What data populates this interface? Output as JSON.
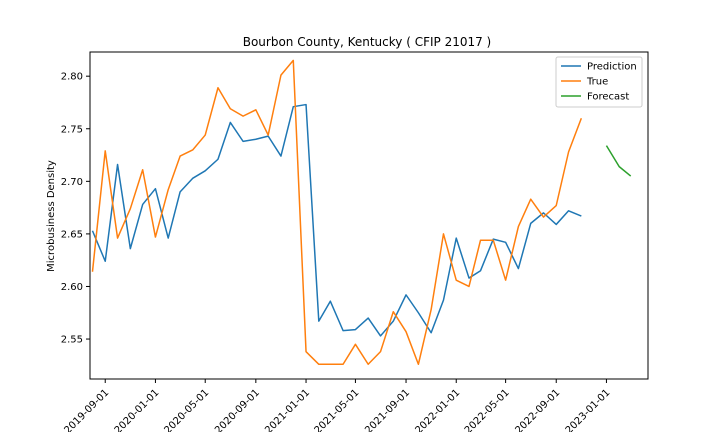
{
  "chart_data": {
    "type": "line",
    "title": "Bourbon County, Kentucky ( CFIP 21017 )",
    "xlabel": "",
    "ylabel": "Microbusiness Density",
    "xlim": [
      "2019-07-26",
      "2023-04-12"
    ],
    "ylim": [
      2.512,
      2.823
    ],
    "grid": false,
    "legend_position": "top-right",
    "x_ticks": [
      "2019-09-01",
      "2020-01-01",
      "2020-05-01",
      "2020-09-01",
      "2021-01-01",
      "2021-05-01",
      "2021-09-01",
      "2022-01-01",
      "2022-05-01",
      "2022-09-01",
      "2023-01-01"
    ],
    "y_ticks": [
      2.55,
      2.6,
      2.65,
      2.7,
      2.75,
      2.8
    ],
    "y_tick_labels": [
      "2.55",
      "2.60",
      "2.65",
      "2.70",
      "2.75",
      "2.80"
    ],
    "series": [
      {
        "name": "Prediction",
        "color": "#1f77b4",
        "x": [
          "2019-08-01",
          "2019-09-01",
          "2019-10-01",
          "2019-11-01",
          "2019-12-01",
          "2020-01-01",
          "2020-02-01",
          "2020-03-01",
          "2020-04-01",
          "2020-05-01",
          "2020-06-01",
          "2020-07-01",
          "2020-08-01",
          "2020-09-01",
          "2020-10-01",
          "2020-11-01",
          "2020-12-01",
          "2021-01-01",
          "2021-02-01",
          "2021-03-01",
          "2021-04-01",
          "2021-05-01",
          "2021-06-01",
          "2021-07-01",
          "2021-08-01",
          "2021-09-01",
          "2021-10-01",
          "2021-11-01",
          "2021-12-01",
          "2022-01-01",
          "2022-02-01",
          "2022-03-01",
          "2022-04-01",
          "2022-05-01",
          "2022-06-01",
          "2022-07-01",
          "2022-08-01",
          "2022-09-01",
          "2022-10-01",
          "2022-11-01"
        ],
        "values": [
          2.653,
          2.624,
          2.716,
          2.636,
          2.678,
          2.693,
          2.646,
          2.69,
          2.703,
          2.71,
          2.721,
          2.756,
          2.738,
          2.74,
          2.743,
          2.724,
          2.771,
          2.773,
          2.567,
          2.586,
          2.558,
          2.559,
          2.57,
          2.553,
          2.567,
          2.592,
          2.575,
          2.556,
          2.587,
          2.646,
          2.608,
          2.615,
          2.645,
          2.642,
          2.617,
          2.66,
          2.67,
          2.659,
          2.672,
          2.667
        ]
      },
      {
        "name": "True",
        "color": "#ff7f0e",
        "x": [
          "2019-08-01",
          "2019-09-01",
          "2019-10-01",
          "2019-11-01",
          "2019-12-01",
          "2020-01-01",
          "2020-02-01",
          "2020-03-01",
          "2020-04-01",
          "2020-05-01",
          "2020-06-01",
          "2020-07-01",
          "2020-08-01",
          "2020-09-01",
          "2020-10-01",
          "2020-11-01",
          "2020-12-01",
          "2021-01-01",
          "2021-02-01",
          "2021-03-01",
          "2021-04-01",
          "2021-05-01",
          "2021-06-01",
          "2021-07-01",
          "2021-08-01",
          "2021-09-01",
          "2021-10-01",
          "2021-11-01",
          "2021-12-01",
          "2022-01-01",
          "2022-02-01",
          "2022-03-01",
          "2022-04-01",
          "2022-05-01",
          "2022-06-01",
          "2022-07-01",
          "2022-08-01",
          "2022-09-01",
          "2022-10-01",
          "2022-11-01"
        ],
        "values": [
          2.614,
          2.729,
          2.646,
          2.674,
          2.711,
          2.647,
          2.692,
          2.724,
          2.73,
          2.744,
          2.789,
          2.769,
          2.762,
          2.768,
          2.744,
          2.801,
          2.815,
          2.538,
          2.526,
          2.526,
          2.526,
          2.545,
          2.526,
          2.538,
          2.576,
          2.557,
          2.526,
          2.578,
          2.65,
          2.606,
          2.6,
          2.644,
          2.644,
          2.606,
          2.657,
          2.683,
          2.666,
          2.677,
          2.728,
          2.76
        ]
      },
      {
        "name": "Forecast",
        "color": "#2ca02c",
        "x": [
          "2023-01-01",
          "2023-02-01",
          "2023-03-01"
        ],
        "values": [
          2.734,
          2.714,
          2.705
        ]
      }
    ]
  }
}
